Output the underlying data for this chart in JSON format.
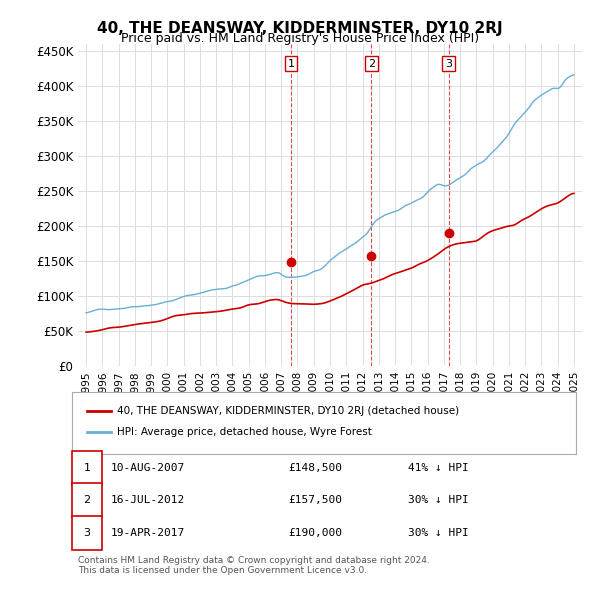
{
  "title": "40, THE DEANSWAY, KIDDERMINSTER, DY10 2RJ",
  "subtitle": "Price paid vs. HM Land Registry's House Price Index (HPI)",
  "hpi_color": "#6aaed6",
  "price_color": "#cc0000",
  "background_color": "#ffffff",
  "grid_color": "#dddddd",
  "ylim": [
    0,
    460000
  ],
  "yticks": [
    0,
    50000,
    100000,
    150000,
    200000,
    250000,
    300000,
    350000,
    400000,
    450000
  ],
  "ytick_labels": [
    "£0",
    "£50K",
    "£100K",
    "£150K",
    "£200K",
    "£250K",
    "£300K",
    "£350K",
    "£400K",
    "£450K"
  ],
  "transactions": [
    {
      "date_num": 2007.61,
      "price": 148500,
      "label": "1",
      "vline_color": "#cc0000"
    },
    {
      "date_num": 2012.54,
      "price": 157500,
      "label": "2",
      "vline_color": "#cc0000"
    },
    {
      "date_num": 2017.3,
      "price": 190000,
      "label": "3",
      "vline_color": "#cc0000"
    }
  ],
  "legend_entries": [
    {
      "label": "40, THE DEANSWAY, KIDDERMINSTER, DY10 2RJ (detached house)",
      "color": "#cc0000"
    },
    {
      "label": "HPI: Average price, detached house, Wyre Forest",
      "color": "#6aaed6"
    }
  ],
  "table_rows": [
    {
      "num": "1",
      "date": "10-AUG-2007",
      "price": "£148,500",
      "hpi": "41% ↓ HPI"
    },
    {
      "num": "2",
      "date": "16-JUL-2012",
      "price": "£157,500",
      "hpi": "30% ↓ HPI"
    },
    {
      "num": "3",
      "date": "19-APR-2017",
      "price": "£190,000",
      "hpi": "30% ↓ HPI"
    }
  ],
  "footnote": "Contains HM Land Registry data © Crown copyright and database right 2024.\nThis data is licensed under the Open Government Licence v3.0.",
  "xlim_start": 1994.5,
  "xlim_end": 2025.5
}
